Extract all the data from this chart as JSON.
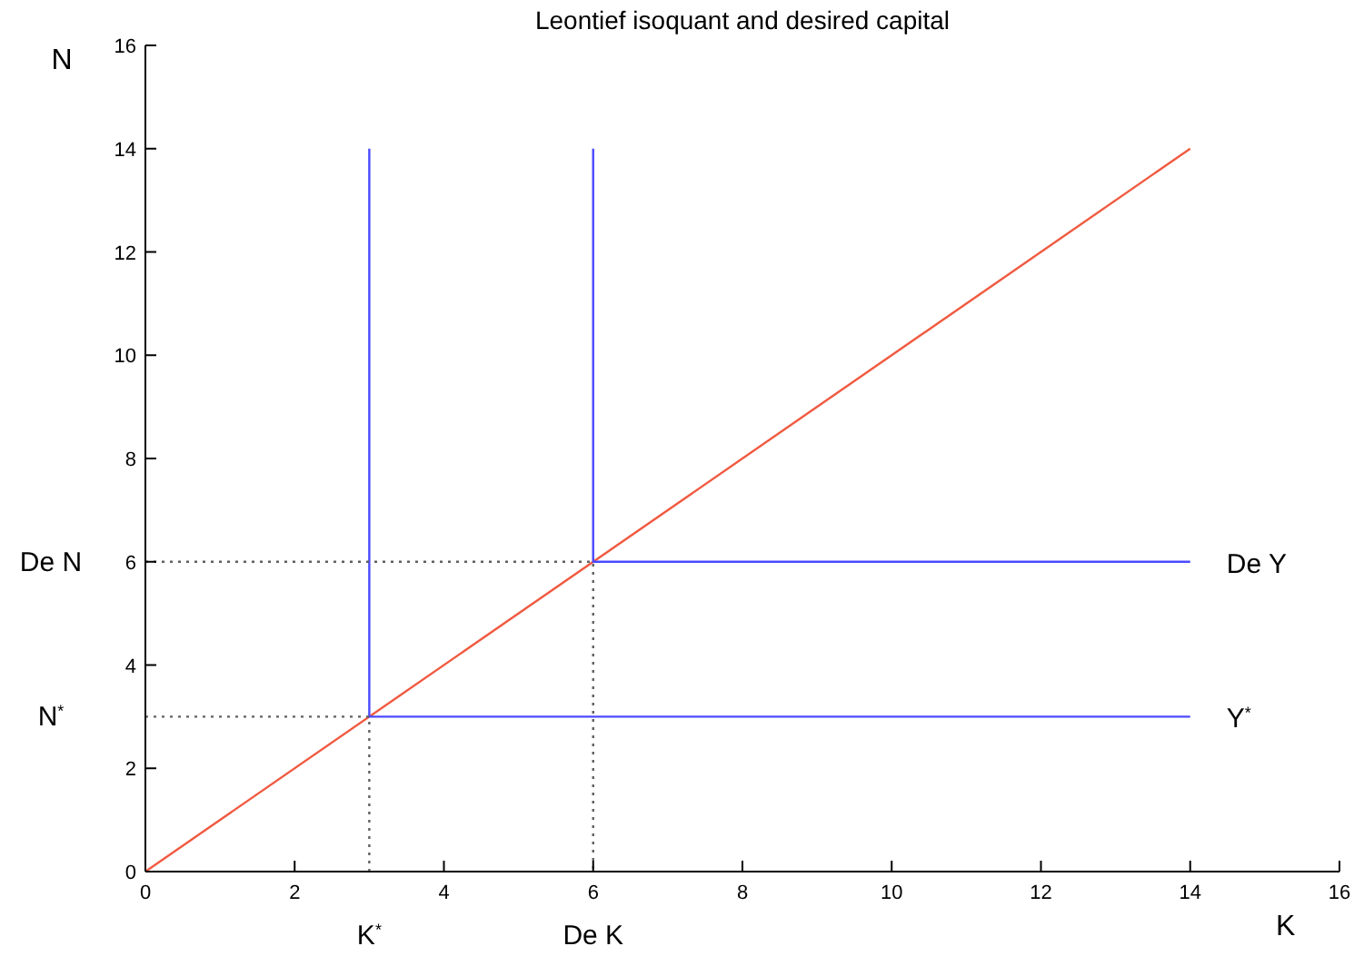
{
  "chart_data": {
    "type": "line",
    "title": "Leontief isoquant and desired capital",
    "xlabel": "K",
    "ylabel": "N",
    "xlim": [
      0,
      16
    ],
    "ylim": [
      0,
      16
    ],
    "xticks": [
      0,
      2,
      4,
      6,
      8,
      10,
      12,
      14,
      16
    ],
    "yticks": [
      0,
      2,
      4,
      6,
      8,
      10,
      12,
      14,
      16
    ],
    "grid": false,
    "marker": "none",
    "series": [
      {
        "color": "#f05a40",
        "x": [
          0,
          14
        ],
        "values": [
          0,
          14
        ]
      },
      {
        "color": "#4a4aff",
        "x": [
          3,
          3,
          14
        ],
        "values": [
          14,
          3,
          3
        ]
      },
      {
        "color": "#4a4aff",
        "x": [
          6,
          6,
          14
        ],
        "values": [
          14,
          6,
          6
        ]
      },
      {
        "color": "#606060",
        "line_style": "dotted",
        "x": [
          0,
          3,
          3
        ],
        "values": [
          3,
          3,
          0
        ]
      },
      {
        "color": "#606060",
        "line_style": "dotted",
        "x": [
          0,
          6,
          6
        ],
        "values": [
          6,
          6,
          0
        ]
      }
    ],
    "annotations": [
      {
        "text": "De N",
        "x": 0,
        "y": 6
      },
      {
        "text": "N$^{*}$",
        "x": 0,
        "y": 3
      },
      {
        "text": "K$^{*}$",
        "x": 3,
        "y": 0
      },
      {
        "text": "De K",
        "x": 6,
        "y": 0
      },
      {
        "text": "De Y",
        "x": 14,
        "y": 6
      },
      {
        "text": "Y$^{*}$",
        "x": 14,
        "y": 3
      }
    ]
  }
}
